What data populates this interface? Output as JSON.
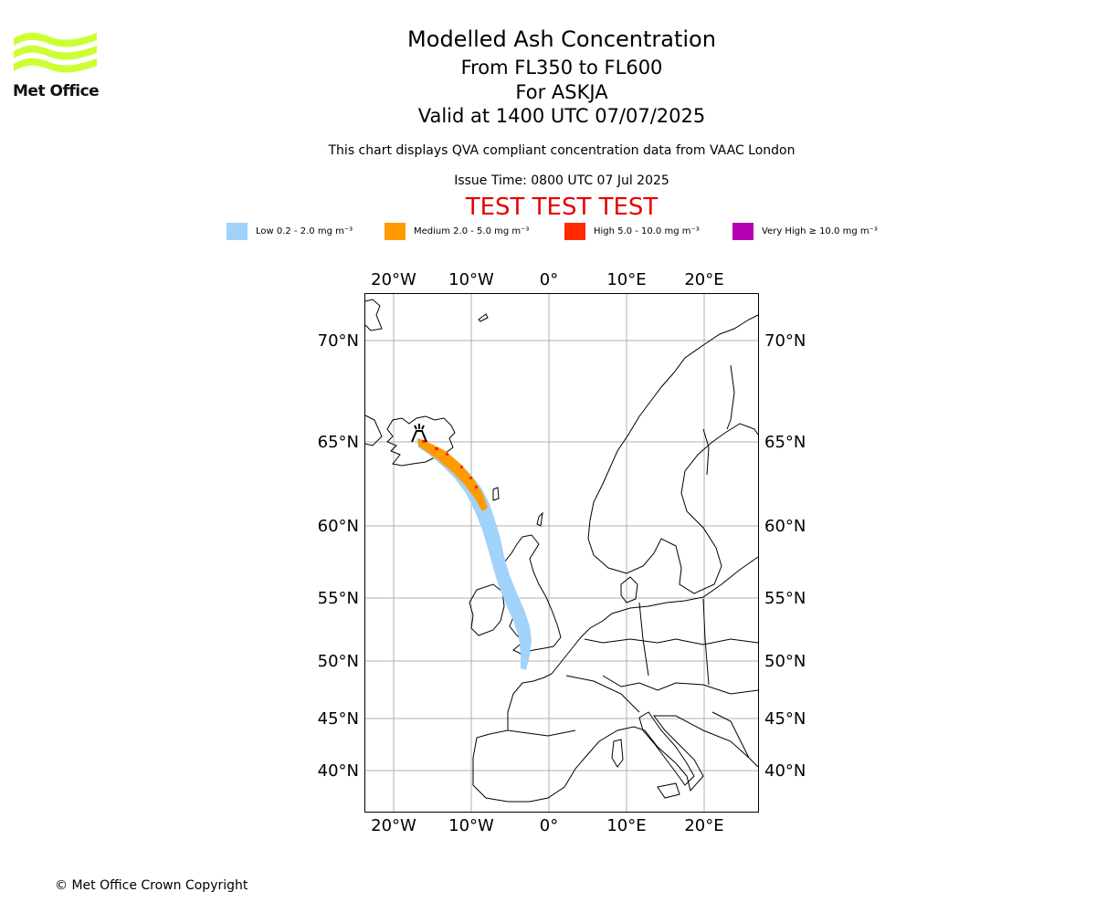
{
  "header": {
    "title": "Modelled Ash Concentration",
    "subtitle_levels": "From FL350 to FL600",
    "subtitle_volcano": "For ASKJA",
    "subtitle_valid": "Valid at 1400 UTC 07/07/2025",
    "qva_note": "This chart displays QVA compliant concentration data from VAAC London",
    "issue_time": "Issue Time: 0800 UTC 07 Jul 2025",
    "test_banner": "TEST TEST TEST"
  },
  "logo": {
    "text": "Met Office",
    "color": "#ccff33"
  },
  "legend": [
    {
      "label": "Low 0.2 - 2.0 mg m⁻³",
      "color": "#a0d2fa"
    },
    {
      "label": "Medium 2.0 - 5.0 mg m⁻³",
      "color": "#ff9a00"
    },
    {
      "label": "High 5.0 - 10.0 mg m⁻³",
      "color": "#ff2a00"
    },
    {
      "label": "Very High  ≥  10.0 mg m⁻³",
      "color": "#b400b4"
    }
  ],
  "map": {
    "lon_ticks": [
      "20°W",
      "10°W",
      "0°",
      "10°E",
      "20°E"
    ],
    "lat_ticks": [
      "70°N",
      "65°N",
      "60°N",
      "55°N",
      "50°N",
      "45°N",
      "40°N"
    ],
    "volcano": "ASKJA",
    "volcano_icon": "volcano-icon",
    "gridlines": true
  },
  "footer": {
    "copyright": "© Met Office Crown Copyright"
  }
}
